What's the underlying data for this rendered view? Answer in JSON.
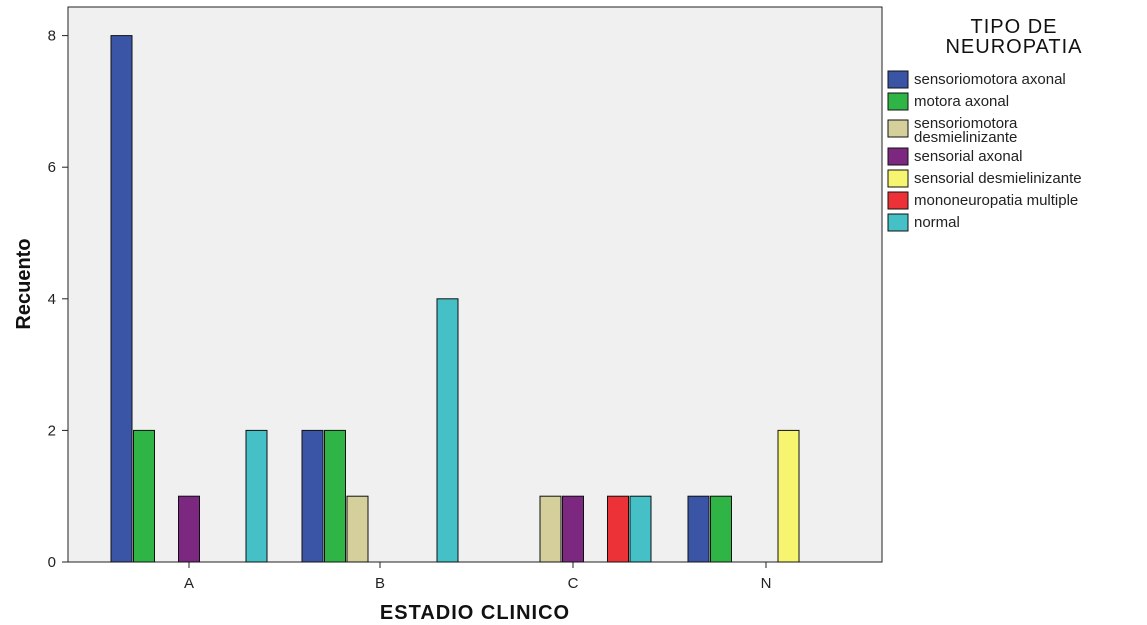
{
  "chart_data": {
    "type": "bar",
    "xlabel": "ESTADIO CLINICO",
    "ylabel": "Recuento",
    "categories": [
      "A",
      "B",
      "C",
      "N"
    ],
    "yticks": [
      "0",
      "2",
      "4",
      "6",
      "8"
    ],
    "ylim": [
      0,
      8.4
    ],
    "grid": false,
    "legend_title": [
      "TIPO DE",
      "NEUROPATIA"
    ],
    "legend_position": "right",
    "series": [
      {
        "name": [
          "sensoriomotora axonal"
        ],
        "color": "#3b55a6",
        "values": [
          8,
          2,
          0,
          1
        ]
      },
      {
        "name": [
          "motora axonal"
        ],
        "color": "#2fb545",
        "values": [
          2,
          2,
          0,
          1
        ]
      },
      {
        "name": [
          "sensoriomotora",
          "desmielinizante"
        ],
        "color": "#d5cf9b",
        "values": [
          0,
          1,
          1,
          0
        ]
      },
      {
        "name": [
          "sensorial axonal"
        ],
        "color": "#7d2880",
        "values": [
          1,
          0,
          1,
          0
        ]
      },
      {
        "name": [
          "sensorial desmielinizante"
        ],
        "color": "#f7f570",
        "values": [
          0,
          0,
          0,
          2
        ]
      },
      {
        "name": [
          "mononeuropatia multiple"
        ],
        "color": "#ec3237",
        "values": [
          0,
          0,
          1,
          0
        ]
      },
      {
        "name": [
          "normal"
        ],
        "color": "#45c0c7",
        "values": [
          2,
          4,
          1,
          0
        ]
      }
    ]
  }
}
